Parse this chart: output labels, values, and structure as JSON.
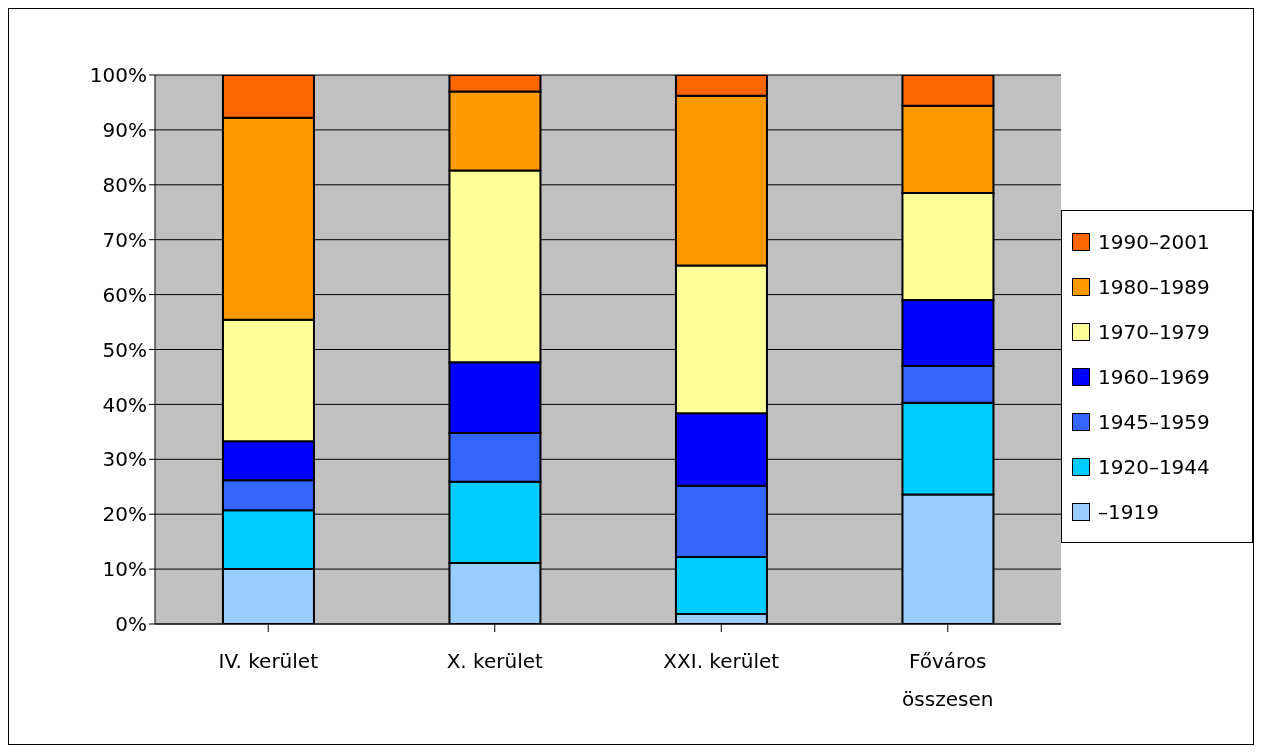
{
  "chart_data": {
    "type": "bar",
    "stacked": true,
    "categories": [
      "IV. kerület",
      "X. kerület",
      "XXI. kerület",
      "Főváros összesen"
    ],
    "series": [
      {
        "name": "–1919",
        "color": "#99ccff",
        "values": [
          10,
          11.1,
          1.8,
          23.6
        ]
      },
      {
        "name": "1920–1944",
        "color": "#00ccff",
        "values": [
          10.7,
          14.8,
          10.4,
          16.7
        ]
      },
      {
        "name": "1945–1959",
        "color": "#3366ff",
        "values": [
          5.5,
          8.9,
          13.0,
          6.7
        ]
      },
      {
        "name": "1960–1969",
        "color": "#0000ff",
        "values": [
          7.1,
          12.9,
          13.2,
          12.0
        ]
      },
      {
        "name": "1970–1979",
        "color": "#ffff99",
        "values": [
          22.1,
          34.9,
          26.9,
          19.5
        ]
      },
      {
        "name": "1980–1989",
        "color": "#ff9900",
        "values": [
          36.8,
          14.4,
          30.9,
          15.9
        ]
      },
      {
        "name": "1990–2001",
        "color": "#ff6600",
        "values": [
          7.8,
          3.0,
          3.8,
          5.6
        ]
      }
    ],
    "ylim": [
      0,
      100
    ],
    "yticks": [
      {
        "value": 0,
        "label": "0%"
      },
      {
        "value": 10,
        "label": "10%"
      },
      {
        "value": 20,
        "label": "20%"
      },
      {
        "value": 30,
        "label": "30%"
      },
      {
        "value": 40,
        "label": "40%"
      },
      {
        "value": 50,
        "label": "50%"
      },
      {
        "value": 60,
        "label": "60%"
      },
      {
        "value": 70,
        "label": "70%"
      },
      {
        "value": 80,
        "label": "80%"
      },
      {
        "value": 90,
        "label": "90%"
      },
      {
        "value": 100,
        "label": "100%"
      }
    ],
    "grid": "y",
    "legend": "right"
  }
}
